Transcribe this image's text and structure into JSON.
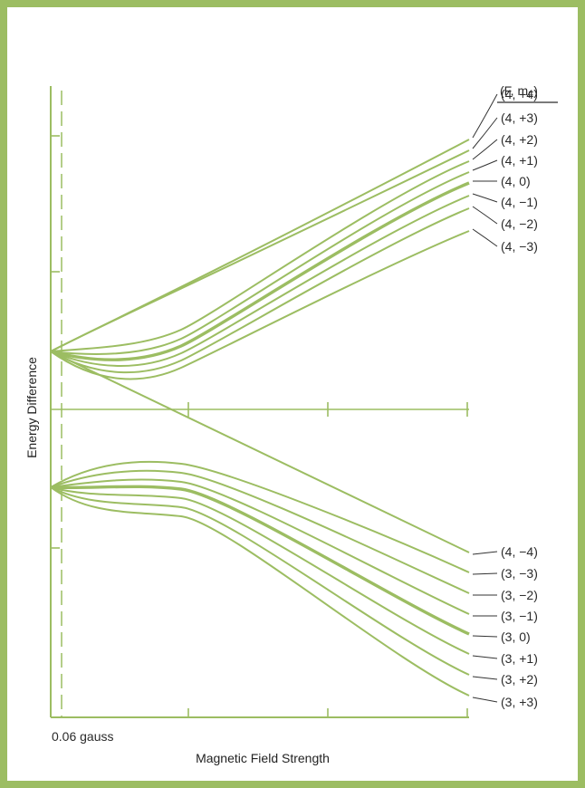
{
  "title": "",
  "xlabel": "Magnetic Field Strength",
  "ylabel": "Energy Difference",
  "x_marker_label": "0.06 gauss",
  "legend_header": "(F, m",
  "legend_header_sub": "F",
  "legend_header_close": ")",
  "colors": {
    "line": "#9cbd62",
    "frame": "#9cbd62",
    "axis": "#9cbd62",
    "text": "#2a2a2a"
  },
  "upper_labels": [
    "(4, +4)",
    "(4, +3)",
    "(4, +2)",
    "(4, +1)",
    "(4,   0)",
    "(4, −1)",
    "(4, −2)",
    "(4, −3)"
  ],
  "lower_labels": [
    "(4, −4)",
    "(3, −3)",
    "(3, −2)",
    "(3, −1)",
    "(3,   0)",
    "(3, +1)",
    "(3, +2)",
    "(3, +3)"
  ]
}
